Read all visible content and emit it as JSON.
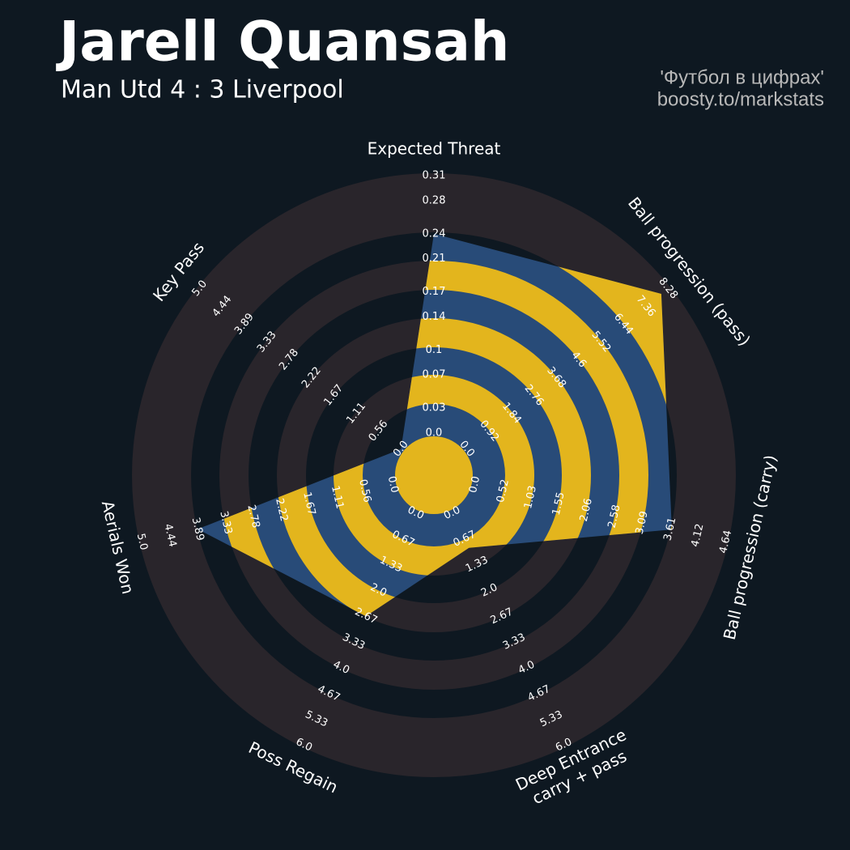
{
  "chart_data": {
    "type": "radar",
    "title": "Jarell Quansah",
    "subtitle": "Man Utd 4 : 3 Liverpool",
    "credits": [
      "'Футбол в цифрах'",
      "boosty.to/markstats"
    ],
    "categories": [
      "Expected Threat",
      "Ball progression (pass)",
      "Ball progression (carry)",
      [
        "Deep Entrance",
        "carry + pass"
      ],
      "Poss Regain",
      "Aerials Won",
      "Key Pass"
    ],
    "values": [
      0.24,
      8.0,
      3.64,
      0.9,
      2.67,
      3.89,
      0
    ],
    "color": "#284b78",
    "ring_color": "#e3b51d",
    "axes": [
      {
        "lim": [
          0,
          0.31
        ],
        "ticks": [
          {
            "value": 0,
            "label": "0.0"
          },
          0.03,
          0.07,
          0.1,
          0.14,
          0.17,
          0.21,
          0.24,
          0.28,
          0.31
        ]
      },
      {
        "lim": [
          0,
          8.28
        ],
        "ticks": [
          {
            "value": 0,
            "label": "0.0"
          },
          0.92,
          1.84,
          2.76,
          3.68,
          4.6,
          5.52,
          6.44,
          7.36,
          8.28
        ]
      },
      {
        "lim": [
          0,
          4.64
        ],
        "ticks": [
          {
            "value": 0,
            "label": "0.0"
          },
          0.52,
          1.03,
          1.55,
          2.06,
          2.58,
          3.09,
          3.61,
          4.12,
          4.64
        ]
      },
      {
        "lim": [
          0,
          6
        ],
        "ticks": [
          {
            "value": 0,
            "label": "0.0"
          },
          0.67,
          1.33,
          {
            "value": 2,
            "label": "2.0"
          },
          2.67,
          3.33,
          {
            "value": 4,
            "label": "4.0"
          },
          4.67,
          5.33,
          {
            "value": 6,
            "label": "6.0"
          }
        ]
      },
      {
        "lim": [
          0,
          6
        ],
        "ticks": [
          {
            "value": 0,
            "label": "0.0"
          },
          0.67,
          1.33,
          {
            "value": 2,
            "label": "2.0"
          },
          2.67,
          3.33,
          {
            "value": 4,
            "label": "4.0"
          },
          4.67,
          5.33,
          {
            "value": 6,
            "label": "6.0"
          }
        ]
      },
      {
        "lim": [
          0,
          5
        ],
        "ticks": [
          {
            "value": 0,
            "label": "0.0"
          },
          0.56,
          1.11,
          1.67,
          2.22,
          2.78,
          3.33,
          3.89,
          4.44,
          {
            "value": 5,
            "label": "5.0"
          }
        ]
      },
      {
        "lim": [
          0,
          5
        ],
        "ticks": [
          {
            "value": 0,
            "label": "0.0"
          },
          0.56,
          1.11,
          1.67,
          2.22,
          2.78,
          3.33,
          3.89,
          4.44,
          {
            "value": 5,
            "label": "5.0"
          }
        ]
      }
    ]
  }
}
